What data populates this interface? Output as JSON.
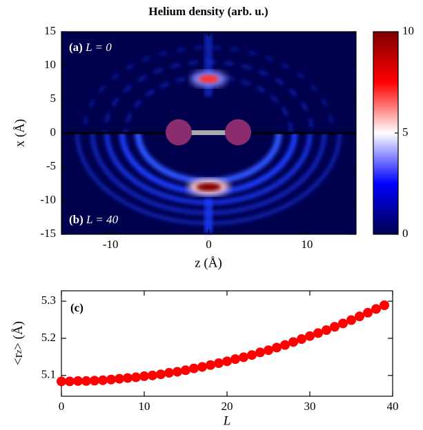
{
  "chart_data": [
    {
      "type": "heatmap",
      "title": "Helium density (arb. u.)",
      "xlabel": "z (Å)",
      "ylabel": "x (Å)",
      "xlim": [
        -15,
        15
      ],
      "ylim": [
        -15,
        15
      ],
      "xticks": [
        -10,
        0,
        10
      ],
      "yticks": [
        -15,
        -10,
        -5,
        0,
        5,
        10,
        15
      ],
      "clim": [
        0,
        10
      ],
      "cticks": [
        0,
        5,
        10
      ],
      "colormap": "seismic",
      "panels": [
        {
          "label": "(a)",
          "text": "L = 0"
        },
        {
          "label": "(b)",
          "text": "L = 40"
        }
      ],
      "peaks": [
        {
          "z": 0,
          "x": 8,
          "value": 7
        },
        {
          "z": 0,
          "x": -8,
          "value": 10
        }
      ]
    },
    {
      "type": "scatter",
      "label": "(c)",
      "xlabel": "L",
      "ylabel": [
        "<r",
        "z",
        "> (Å)"
      ],
      "color": "#ff0000",
      "xlim": [
        0,
        40
      ],
      "ylim": [
        5.044,
        5.328
      ],
      "xticks": [
        0,
        10,
        20,
        30,
        40
      ],
      "yticks": [
        5.1,
        5.2,
        5.3
      ],
      "x": [
        0,
        1,
        2,
        3,
        4,
        5,
        6,
        7,
        8,
        9,
        10,
        11,
        12,
        13,
        14,
        15,
        16,
        17,
        18,
        19,
        20,
        21,
        22,
        23,
        24,
        25,
        26,
        27,
        28,
        29,
        30,
        31,
        32,
        33,
        34,
        35,
        36,
        37,
        38,
        39
      ],
      "values": [
        5.084,
        5.084,
        5.085,
        5.085,
        5.086,
        5.087,
        5.089,
        5.091,
        5.093,
        5.095,
        5.098,
        5.1,
        5.103,
        5.107,
        5.11,
        5.114,
        5.119,
        5.123,
        5.128,
        5.133,
        5.138,
        5.144,
        5.149,
        5.155,
        5.162,
        5.168,
        5.175,
        5.182,
        5.19,
        5.198,
        5.206,
        5.214,
        5.222,
        5.231,
        5.24,
        5.249,
        5.259,
        5.269,
        5.279,
        5.289
      ]
    }
  ]
}
